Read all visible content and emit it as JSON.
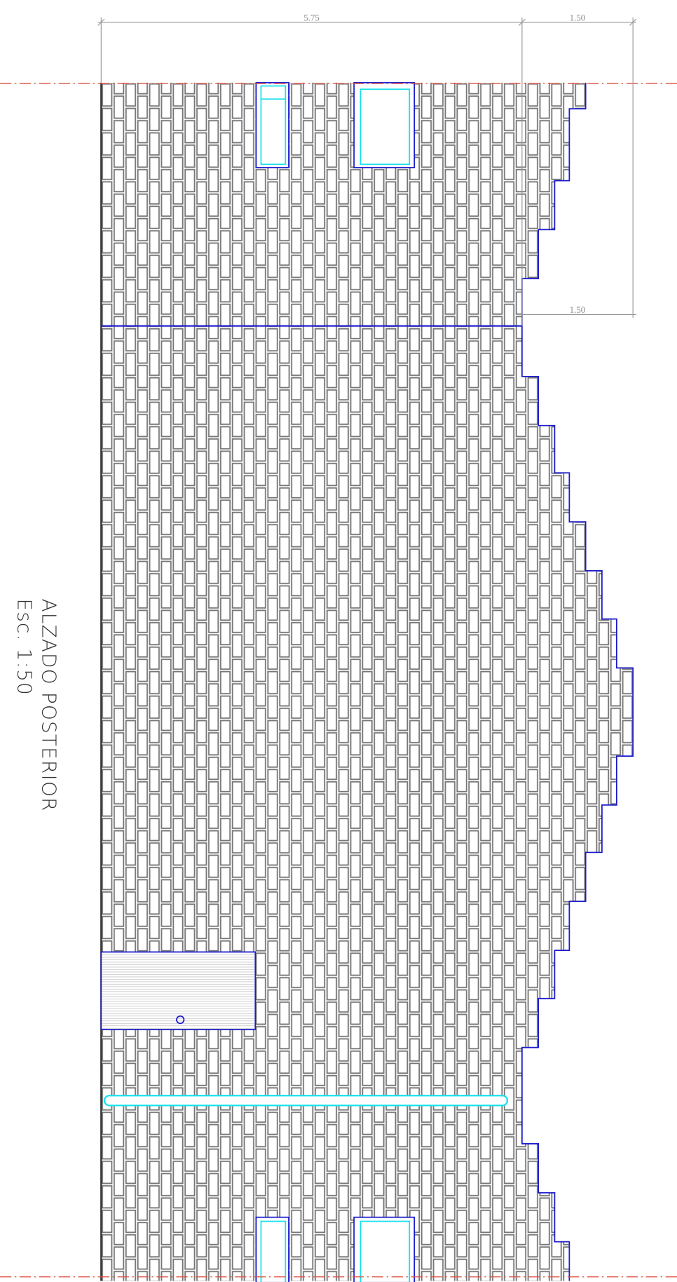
{
  "dimensions": {
    "width_main": "5.75",
    "width_top_right": "1.50",
    "width_mid_right": "1.50"
  },
  "title": {
    "name": "ALZADO POSTERIOR",
    "scale": "Esc. 1:50"
  }
}
